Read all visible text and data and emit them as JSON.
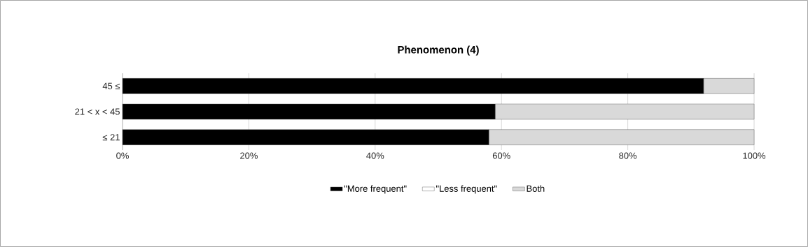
{
  "chart_data": {
    "type": "bar",
    "orientation": "horizontal",
    "stacked": true,
    "title": "Phenomenon (4)",
    "categories": [
      "45 ≤",
      "21 < x < 45",
      "≤ 21"
    ],
    "series": [
      {
        "name": "\"More frequent\"",
        "color": "#000000",
        "values": [
          92,
          59,
          58
        ]
      },
      {
        "name": "\"Less frequent\"",
        "color": "#ffffff",
        "values": [
          null,
          null,
          null
        ]
      },
      {
        "name": "Both",
        "color": "#d9d9d9",
        "values": [
          8,
          41,
          42
        ]
      }
    ],
    "xlim": [
      0,
      100
    ],
    "xticks": [
      {
        "value": 0,
        "label": "0%"
      },
      {
        "value": 20,
        "label": "20%"
      },
      {
        "value": 40,
        "label": "40%"
      },
      {
        "value": 60,
        "label": "60%"
      },
      {
        "value": 80,
        "label": "80%"
      },
      {
        "value": 100,
        "label": "100%"
      }
    ],
    "grid": "x",
    "legend": "bottom"
  }
}
